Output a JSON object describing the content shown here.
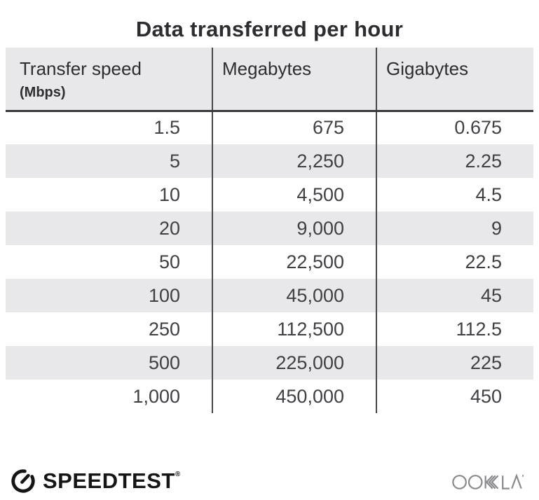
{
  "title": "Data transferred per hour",
  "table": {
    "headers": [
      {
        "label": "Transfer speed",
        "sublabel": "(Mbps)"
      },
      {
        "label": "Megabytes"
      },
      {
        "label": "Gigabytes"
      }
    ],
    "rows": [
      [
        "1.5",
        "675",
        "0.675"
      ],
      [
        "5",
        "2,250",
        "2.25"
      ],
      [
        "10",
        "4,500",
        "4.5"
      ],
      [
        "20",
        "9,000",
        "9"
      ],
      [
        "50",
        "22,500",
        "22.5"
      ],
      [
        "100",
        "45,000",
        "45"
      ],
      [
        "250",
        "112,500",
        "112.5"
      ],
      [
        "500",
        "225,000",
        "225"
      ],
      [
        "1,000",
        "450,000",
        "450"
      ]
    ]
  },
  "footer": {
    "speedtest_label": "SPEEDTEST",
    "speedtest_trademark": "®",
    "ookla_label": "OOKLA"
  },
  "colors": {
    "header_bg": "#e8e7ea",
    "row_alt_bg": "#e8e7ea",
    "divider": "#48474b",
    "header_border": "#39383c",
    "title_text": "#2d2c30",
    "number_text": "#403f44",
    "speedtest_black": "#151518",
    "ookla_gray": "#8b898d"
  },
  "chart_data": {
    "type": "table",
    "title": "Data transferred per hour",
    "columns": [
      "Transfer speed (Mbps)",
      "Megabytes",
      "Gigabytes"
    ],
    "rows": [
      [
        1.5,
        675,
        0.675
      ],
      [
        5,
        2250,
        2.25
      ],
      [
        10,
        4500,
        4.5
      ],
      [
        20,
        9000,
        9
      ],
      [
        50,
        22500,
        22.5
      ],
      [
        100,
        45000,
        45
      ],
      [
        250,
        112500,
        112.5
      ],
      [
        500,
        225000,
        225
      ],
      [
        1000,
        450000,
        450
      ]
    ]
  }
}
